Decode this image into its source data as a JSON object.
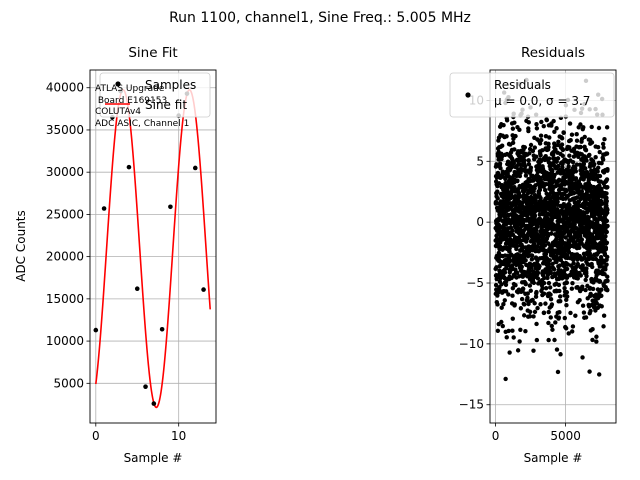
{
  "figure": {
    "suptitle": "Run 1100, channel1, Sine Freq.: 5.005 MHz"
  },
  "chart_data": [
    {
      "type": "scatter",
      "title": "Sine Fit",
      "xlabel": "Sample #",
      "ylabel": "ADC Counts",
      "xlim": [
        -0.7,
        14.5
      ],
      "ylim": [
        300,
        42100
      ],
      "xticks": [
        0,
        10
      ],
      "yticks": [
        5000,
        10000,
        15000,
        20000,
        25000,
        30000,
        35000,
        40000
      ],
      "grid": true,
      "legend": {
        "placement": "top-right",
        "entries": [
          "Samples",
          "Sine fit"
        ]
      },
      "annotation": [
        "ATLAS Upgrade",
        " Board E169153",
        "COLUTAv4",
        "ADC ASIC, Channel 1"
      ],
      "series": [
        {
          "name": "Samples",
          "kind": "points",
          "color": "#000000",
          "x": [
            0,
            1,
            2,
            3,
            4,
            5,
            6,
            7,
            8,
            9,
            10,
            11,
            12,
            13
          ],
          "y": [
            11300,
            25700,
            36500,
            39600,
            30600,
            16200,
            4600,
            2600,
            11400,
            25900,
            36700,
            39300,
            30500,
            16100
          ]
        },
        {
          "name": "Sine fit",
          "kind": "line",
          "color": "#ff0000",
          "model": {
            "offset": 20950,
            "amplitude": 18800,
            "period": 8.0,
            "phase_sample": 3.3
          },
          "x_range": [
            0,
            13.8
          ]
        }
      ]
    },
    {
      "type": "scatter",
      "title": "Residuals",
      "xlabel": "Sample #",
      "ylabel": "",
      "xlim": [
        -400,
        8600
      ],
      "ylim": [
        -16.5,
        12.5
      ],
      "xticks": [
        0,
        5000
      ],
      "yticks": [
        -15,
        -10,
        -5,
        0,
        5,
        10
      ],
      "grid": true,
      "legend": {
        "placement": "top-right",
        "entries": [
          "Residuals",
          "μ = 0.0, σ = 3.7"
        ]
      },
      "series": [
        {
          "name": "Residuals",
          "kind": "points",
          "color": "#000000",
          "n_points": 8000,
          "x_range": [
            0,
            8000
          ],
          "mean": 0.0,
          "std": 3.7,
          "y_range": [
            -15,
            12
          ]
        }
      ]
    }
  ]
}
